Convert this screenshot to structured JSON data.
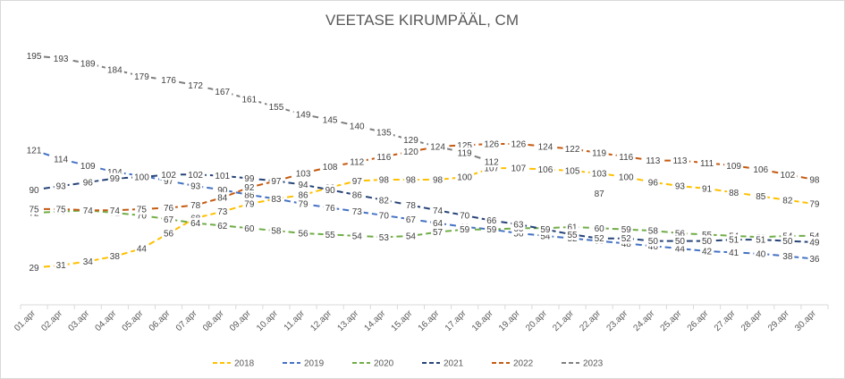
{
  "chart_data": {
    "type": "line",
    "title": "VEETASE KIRUMPÄÄL, CM",
    "xlabel": "",
    "ylabel": "",
    "ylim": [
      0,
      210
    ],
    "grid": false,
    "legend_position": "bottom",
    "categories": [
      "01.apr",
      "02.apr",
      "03.apr",
      "04.apr",
      "05.apr",
      "06.apr",
      "07.apr",
      "08.apr",
      "09.apr",
      "10.apr",
      "11.apr",
      "12.apr",
      "13.apr",
      "14.apr",
      "15.apr",
      "16.apr",
      "17.apr",
      "18.apr",
      "19.apr",
      "20.apr",
      "21.apr",
      "22.apr",
      "23.apr",
      "24.apr",
      "25.apr",
      "26.apr",
      "27.apr",
      "28.apr",
      "29.apr",
      "30.apr"
    ],
    "series": [
      {
        "name": "2018",
        "color": "#ffc000",
        "values": [
          29,
          31,
          34,
          38,
          44,
          56,
          68,
          73,
          79,
          83,
          86,
          92,
          97,
          98,
          98,
          98,
          100,
          107,
          107,
          106,
          105,
          103,
          100,
          96,
          93,
          91,
          88,
          85,
          82,
          79
        ]
      },
      {
        "name": "2019",
        "color": "#4472c4",
        "values": [
          121,
          114,
          109,
          104,
          101,
          97,
          93,
          90,
          86,
          83,
          79,
          76,
          73,
          70,
          67,
          64,
          61,
          59,
          56,
          54,
          52,
          50,
          48,
          46,
          44,
          42,
          41,
          40,
          38,
          36
        ]
      },
      {
        "name": "2020",
        "color": "#70ad47",
        "values": [
          72,
          73,
          74,
          72,
          70,
          67,
          64,
          62,
          60,
          58,
          56,
          55,
          54,
          53,
          54,
          57,
          59,
          59,
          60,
          60,
          61,
          60,
          59,
          58,
          56,
          55,
          54,
          53,
          54,
          54
        ]
      },
      {
        "name": "2021",
        "color": "#264478",
        "values": [
          90,
          93,
          96,
          99,
          100,
          102,
          102,
          101,
          99,
          97,
          94,
          90,
          86,
          82,
          78,
          74,
          70,
          66,
          63,
          59,
          55,
          52,
          52,
          50,
          50,
          50,
          51,
          51,
          50,
          49
        ]
      },
      {
        "name": "2022",
        "color": "#c55a11",
        "values": [
          75,
          75,
          74,
          74,
          75,
          76,
          78,
          84,
          92,
          97,
          103,
          108,
          112,
          116,
          120,
          124,
          125,
          126,
          126,
          124,
          122,
          119,
          116,
          113,
          113,
          111,
          109,
          106,
          102,
          98
        ]
      },
      {
        "name": "2023",
        "color": "#7f7f7f",
        "values": [
          195,
          193,
          189,
          184,
          179,
          176,
          172,
          167,
          161,
          155,
          149,
          145,
          140,
          135,
          129,
          124,
          119,
          112,
          null,
          null,
          null,
          87,
          null,
          null,
          null,
          null,
          null,
          null,
          null,
          null
        ]
      }
    ]
  }
}
